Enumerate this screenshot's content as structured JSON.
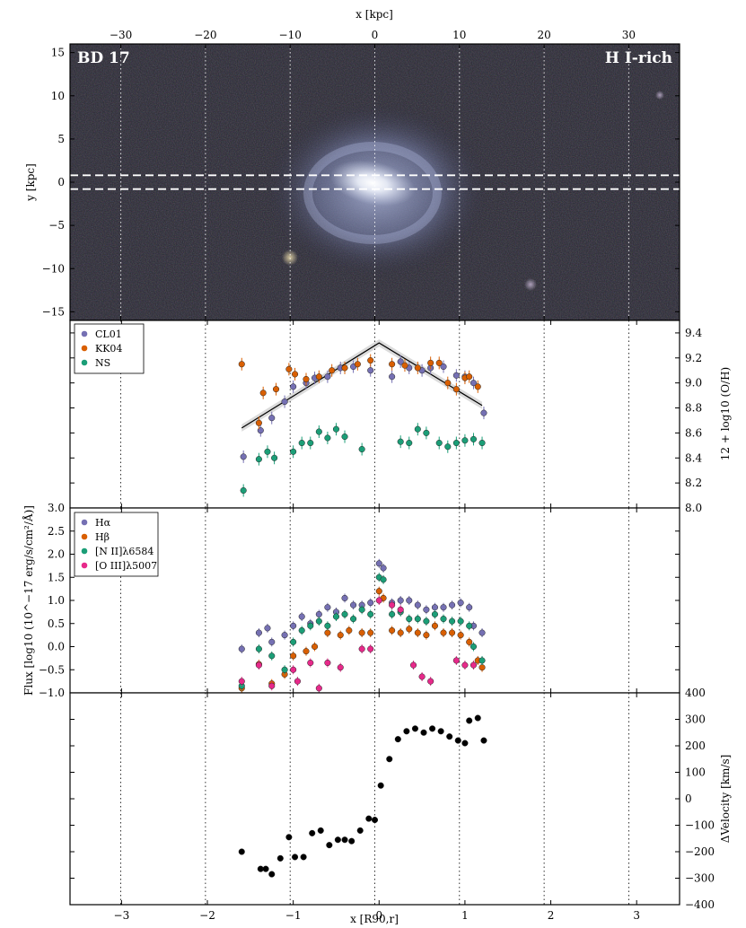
{
  "galaxy_label": "BD 17",
  "category_label": "H I-rich",
  "colors": {
    "CL01": "#7570b3",
    "KK04": "#d95f02",
    "NS": "#1b9e77",
    "Halpha": "#7570b3",
    "Hbeta": "#d95f02",
    "NII": "#1b9e77",
    "OIII": "#e7298a",
    "velocity": "#000000"
  },
  "chart_data": [
    {
      "type": "image",
      "name": "galaxy-image",
      "xlabel": "x [kpc]",
      "ylabel": "y [kpc]",
      "xlim": [
        -36,
        36
      ],
      "ylim": [
        -16,
        16
      ],
      "xticks": [
        -30,
        -20,
        -10,
        0,
        10,
        20,
        30
      ],
      "xticklabels": [
        "−30",
        "−20",
        "−10",
        "0",
        "10",
        "20",
        "30"
      ],
      "yticks": [
        -15,
        -10,
        -5,
        0,
        5,
        10,
        15
      ],
      "yticklabels": [
        "−15",
        "−10",
        "−5",
        "0",
        "5",
        "10",
        "15"
      ],
      "slit_y": [
        -0.8,
        0.8
      ]
    },
    {
      "type": "scatter",
      "name": "metallicity",
      "ylabel": "12 + log10 (O/H)",
      "ylim": [
        8.0,
        9.5
      ],
      "yticks": [
        8.0,
        8.2,
        8.4,
        8.6,
        8.8,
        9.0,
        9.2,
        9.4
      ],
      "yticklabels": [
        "8.0",
        "8.2",
        "8.4",
        "8.6",
        "8.8",
        "9.0",
        "9.2",
        "9.4"
      ],
      "legend": [
        "CL01",
        "KK04",
        "NS"
      ],
      "legend_position": "top-left",
      "fit_line": {
        "x": [
          -1.6,
          0,
          1.2
        ],
        "y": [
          8.64,
          9.32,
          8.82
        ]
      },
      "series": [
        {
          "name": "CL01",
          "x": [
            -1.58,
            -1.38,
            -1.25,
            -1.1,
            -1.0,
            -0.85,
            -0.75,
            -0.6,
            -0.45,
            -0.3,
            -0.1,
            0.15,
            0.25,
            0.35,
            0.5,
            0.6,
            0.75,
            0.9,
            1.0,
            1.1,
            1.22
          ],
          "y": [
            8.41,
            8.62,
            8.72,
            8.85,
            8.97,
            9.0,
            9.04,
            9.05,
            9.12,
            9.13,
            9.1,
            9.05,
            9.17,
            9.12,
            9.1,
            9.12,
            9.13,
            9.06,
            9.05,
            9.0,
            8.76
          ]
        },
        {
          "name": "KK04",
          "x": [
            -1.6,
            -1.4,
            -1.35,
            -1.2,
            -1.05,
            -0.98,
            -0.85,
            -0.7,
            -0.55,
            -0.4,
            -0.25,
            -0.1,
            0.15,
            0.3,
            0.45,
            0.6,
            0.7,
            0.8,
            0.9,
            1.0,
            1.05,
            1.15
          ],
          "y": [
            9.15,
            8.68,
            8.92,
            8.95,
            9.11,
            9.07,
            9.03,
            9.05,
            9.1,
            9.12,
            9.15,
            9.18,
            9.15,
            9.14,
            9.12,
            9.16,
            9.16,
            9.0,
            8.95,
            9.04,
            9.05,
            8.97
          ]
        },
        {
          "name": "NS",
          "x": [
            -1.58,
            -1.4,
            -1.3,
            -1.22,
            -1.0,
            -0.9,
            -0.8,
            -0.7,
            -0.6,
            -0.5,
            -0.4,
            -0.2,
            0.25,
            0.35,
            0.45,
            0.55,
            0.7,
            0.8,
            0.9,
            1.0,
            1.1,
            1.2
          ],
          "y": [
            8.14,
            8.39,
            8.45,
            8.4,
            8.45,
            8.52,
            8.52,
            8.61,
            8.56,
            8.63,
            8.57,
            8.47,
            8.53,
            8.52,
            8.63,
            8.6,
            8.52,
            8.49,
            8.52,
            8.54,
            8.55,
            8.52
          ]
        }
      ]
    },
    {
      "type": "scatter",
      "name": "line-flux",
      "ylabel": "Flux [log10 (10^−17 erg/s/cm²/Å)]",
      "ylim": [
        -1.0,
        3.0
      ],
      "yticks": [
        -1.0,
        -0.5,
        0.0,
        0.5,
        1.0,
        1.5,
        2.0,
        2.5,
        3.0
      ],
      "yticklabels": [
        "−1.0",
        "−0.5",
        "0.0",
        "0.5",
        "1.0",
        "1.5",
        "2.0",
        "2.5",
        "3.0"
      ],
      "legend": [
        "Hα",
        "Hβ",
        "[N II]λ6584",
        "[O III]λ5007"
      ],
      "legend_position": "top-left",
      "series": [
        {
          "name": "Hα",
          "x": [
            -1.6,
            -1.4,
            -1.3,
            -1.25,
            -1.1,
            -1.0,
            -0.9,
            -0.8,
            -0.7,
            -0.6,
            -0.5,
            -0.4,
            -0.3,
            -0.2,
            -0.1,
            0.0,
            0.05,
            0.15,
            0.25,
            0.35,
            0.45,
            0.55,
            0.65,
            0.75,
            0.85,
            0.95,
            1.05,
            1.1,
            1.2
          ],
          "y": [
            -0.05,
            0.3,
            0.4,
            0.1,
            0.25,
            0.45,
            0.65,
            0.5,
            0.7,
            0.85,
            0.75,
            1.05,
            0.9,
            0.9,
            0.95,
            1.8,
            1.7,
            0.95,
            1.0,
            1.0,
            0.9,
            0.8,
            0.85,
            0.85,
            0.9,
            0.95,
            0.85,
            0.45,
            0.3
          ]
        },
        {
          "name": "Hβ",
          "x": [
            -1.6,
            -1.4,
            -1.25,
            -1.1,
            -1.0,
            -0.85,
            -0.75,
            -0.6,
            -0.45,
            -0.35,
            -0.2,
            -0.1,
            0.0,
            0.05,
            0.15,
            0.25,
            0.35,
            0.45,
            0.55,
            0.65,
            0.75,
            0.85,
            0.95,
            1.05,
            1.15,
            1.2
          ],
          "y": [
            -0.9,
            -0.38,
            -0.8,
            -0.6,
            -0.2,
            -0.1,
            0.0,
            0.3,
            0.25,
            0.35,
            0.3,
            0.3,
            1.2,
            1.05,
            0.35,
            0.3,
            0.38,
            0.3,
            0.25,
            0.45,
            0.3,
            0.3,
            0.25,
            0.1,
            -0.3,
            -0.45
          ]
        },
        {
          "name": "[N II]λ6584",
          "x": [
            -1.6,
            -1.4,
            -1.25,
            -1.1,
            -1.0,
            -0.9,
            -0.8,
            -0.7,
            -0.6,
            -0.5,
            -0.4,
            -0.3,
            -0.2,
            -0.1,
            0.0,
            0.05,
            0.15,
            0.25,
            0.35,
            0.45,
            0.55,
            0.65,
            0.75,
            0.85,
            0.95,
            1.05,
            1.1,
            1.2
          ],
          "y": [
            -0.85,
            -0.05,
            -0.2,
            -0.5,
            0.1,
            0.35,
            0.45,
            0.55,
            0.45,
            0.65,
            0.7,
            0.6,
            0.8,
            0.7,
            1.5,
            1.45,
            0.7,
            0.75,
            0.6,
            0.6,
            0.55,
            0.7,
            0.6,
            0.55,
            0.55,
            0.45,
            0.0,
            -0.3
          ]
        },
        {
          "name": "[O III]λ5007",
          "x": [
            -1.6,
            -1.4,
            -1.25,
            -1.0,
            -0.95,
            -0.8,
            -0.7,
            -0.6,
            -0.45,
            -0.2,
            -0.1,
            0.0,
            0.15,
            0.25,
            0.4,
            0.5,
            0.6,
            0.9,
            1.0,
            1.1
          ],
          "y": [
            -0.75,
            -0.4,
            -0.85,
            -0.5,
            -0.75,
            -0.35,
            -0.9,
            -0.35,
            -0.45,
            -0.05,
            -0.05,
            1.0,
            0.9,
            0.8,
            -0.4,
            -0.65,
            -0.75,
            -0.3,
            -0.4,
            -0.4
          ]
        }
      ]
    },
    {
      "type": "scatter",
      "name": "velocity",
      "xlabel": "x [R90,r]",
      "ylabel": "ΔVelocity [km/s]",
      "xlim": [
        -3.6,
        3.5
      ],
      "xticks": [
        -3,
        -2,
        -1,
        0,
        1,
        2,
        3
      ],
      "xticklabels": [
        "−3",
        "−2",
        "−1",
        "0",
        "1",
        "2",
        "3"
      ],
      "ylim": [
        -400,
        400
      ],
      "yticks": [
        -400,
        -300,
        -200,
        -100,
        0,
        100,
        200,
        300,
        400
      ],
      "yticklabels": [
        "−400",
        "−300",
        "−200",
        "−100",
        "0",
        "100",
        "200",
        "300",
        "400"
      ],
      "series": [
        {
          "name": "",
          "x": [
            -1.6,
            -1.38,
            -1.32,
            -1.25,
            -1.15,
            -1.05,
            -0.98,
            -0.88,
            -0.78,
            -0.68,
            -0.58,
            -0.48,
            -0.4,
            -0.32,
            -0.22,
            -0.12,
            -0.05,
            0.02,
            0.12,
            0.22,
            0.32,
            0.42,
            0.52,
            0.62,
            0.72,
            0.82,
            0.92,
            1.0,
            1.05,
            1.15,
            1.22
          ],
          "y": [
            -200,
            -265,
            -265,
            -285,
            -225,
            -145,
            -220,
            -220,
            -130,
            -120,
            -175,
            -155,
            -155,
            -160,
            -120,
            -75,
            -80,
            50,
            150,
            225,
            255,
            265,
            250,
            265,
            255,
            235,
            220,
            210,
            295,
            305,
            220
          ]
        }
      ]
    }
  ]
}
